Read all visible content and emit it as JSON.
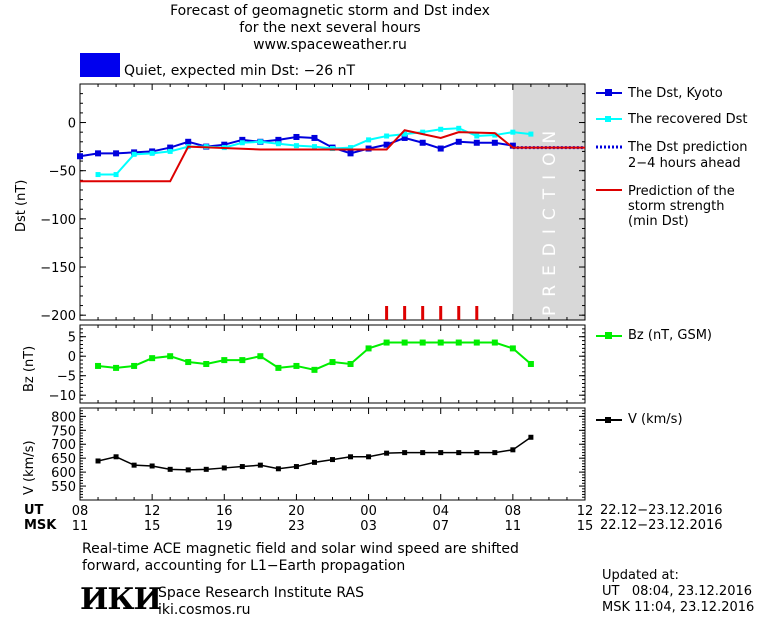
{
  "header": {
    "title_line1": "Forecast of geomagnetic storm and Dst index",
    "title_line2": "for the next several hours",
    "title_line3": "www.spaceweather.ru"
  },
  "status": {
    "text": "Quiet, expected min Dst: −26 nT",
    "color": "#0000ee"
  },
  "legend": {
    "dst_kyoto": "The Dst, Kyoto",
    "dst_recovered": "The recovered Dst",
    "dst_prediction_line1": "The Dst prediction",
    "dst_prediction_line2": "2−4 hours ahead",
    "storm_line1": "Prediction of the",
    "storm_line2": "storm strength",
    "storm_line3": "(min Dst)",
    "bz": "Bz (nT, GSM)",
    "v": "V (km/s)"
  },
  "prediction_label": "PREDICTION",
  "time_axis": {
    "ut_label": "UT",
    "msk_label": "MSK",
    "ut_ticks": [
      "08",
      "12",
      "16",
      "20",
      "00",
      "04",
      "08",
      "12"
    ],
    "msk_ticks": [
      "11",
      "15",
      "19",
      "23",
      "03",
      "07",
      "11",
      "15"
    ],
    "ut_date": "22.12−23.12.2016",
    "msk_date": "22.12−23.12.2016"
  },
  "footer": {
    "note_line1": "Real-time ACE magnetic field and solar wind speed are shifted",
    "note_line2": "forward, accounting for L1−Earth propagation",
    "logo": "ИКИ",
    "institute": "Space Research Institute RAS",
    "site": "iki.cosmos.ru",
    "updated_label": "Updated at:",
    "updated_ut": "UT   08:04, 23.12.2016",
    "updated_msk": "MSK 11:04, 23.12.2016"
  },
  "colors": {
    "kyoto": "#0000dd",
    "recovered": "#00ffff",
    "storm": "#dd0000",
    "bz": "#00ee00",
    "v": "#000000",
    "prediction_band": "#d8d8d8"
  },
  "chart_data": [
    {
      "type": "line",
      "ylabel": "Dst (nT)",
      "xlim": [
        8,
        36
      ],
      "ylim": [
        -205,
        40
      ],
      "yticks": [
        0,
        -50,
        -100,
        -150,
        -200
      ],
      "prediction_start_x": 32,
      "series": [
        {
          "name": "The Dst, Kyoto",
          "x": [
            8,
            9,
            10,
            11,
            12,
            13,
            14,
            15,
            16,
            17,
            18,
            19,
            20,
            21,
            22,
            23,
            24,
            25,
            26,
            27,
            28,
            29,
            30,
            31,
            32
          ],
          "y": [
            -35,
            -32,
            -32,
            -31,
            -30,
            -26,
            -20,
            -25,
            -23,
            -18,
            -20,
            -18,
            -15,
            -16,
            -26,
            -32,
            -27,
            -23,
            -16,
            -21,
            -27,
            -20,
            -21,
            -21,
            -24
          ]
        },
        {
          "name": "The recovered Dst",
          "x": [
            9,
            10,
            11,
            12,
            13,
            14,
            15,
            16,
            17,
            18,
            19,
            20,
            21,
            22,
            23,
            24,
            25,
            26,
            27,
            28,
            29,
            30,
            31,
            32,
            33
          ],
          "y": [
            -54,
            -54,
            -33,
            -32,
            -30,
            -25,
            -25,
            -26,
            -21,
            -20,
            -22,
            -24,
            -25,
            -27,
            -26,
            -18,
            -14,
            -12,
            -10,
            -7,
            -6,
            -14,
            -13,
            -10,
            -12
          ]
        },
        {
          "name": "The Dst prediction 2−4 hours ahead",
          "x": [
            32,
            34,
            36
          ],
          "y": [
            -26,
            -26,
            -26
          ]
        },
        {
          "name": "Prediction of the storm strength (min Dst)",
          "x": [
            8,
            13,
            14,
            18,
            21,
            25,
            26,
            28,
            29,
            31,
            32,
            36
          ],
          "y": [
            -61,
            -61,
            -25,
            -28,
            -28,
            -28,
            -8,
            -16,
            -10,
            -11,
            -26,
            -26
          ]
        }
      ],
      "markers_x": [
        25,
        26,
        27,
        28,
        29,
        30
      ]
    },
    {
      "type": "line",
      "ylabel": "Bz (nT)",
      "xlim": [
        8,
        36
      ],
      "ylim": [
        -12,
        8
      ],
      "yticks": [
        5,
        0,
        -5,
        -10
      ],
      "series": [
        {
          "name": "Bz (nT, GSM)",
          "x": [
            9,
            10,
            11,
            12,
            13,
            14,
            15,
            16,
            17,
            18,
            19,
            20,
            21,
            22,
            23,
            24,
            25,
            26,
            27,
            28,
            29,
            30,
            31,
            32,
            33
          ],
          "y": [
            -2.5,
            -3,
            -2.5,
            -0.5,
            0,
            -1.5,
            -2,
            -1,
            -1,
            0,
            -3,
            -2.5,
            -3.5,
            -1.5,
            -2,
            2,
            3.5,
            3.5,
            3.5,
            3.5,
            3.5,
            3.5,
            3.5,
            2,
            -2
          ]
        }
      ]
    },
    {
      "type": "line",
      "ylabel": "V (km/s)",
      "xlim": [
        8,
        36
      ],
      "ylim": [
        500,
        830
      ],
      "yticks": [
        800,
        750,
        700,
        650,
        600,
        550
      ],
      "series": [
        {
          "name": "V (km/s)",
          "x": [
            9,
            10,
            11,
            12,
            13,
            14,
            15,
            16,
            17,
            18,
            19,
            20,
            21,
            22,
            23,
            24,
            25,
            26,
            27,
            28,
            29,
            30,
            31,
            32,
            33
          ],
          "y": [
            640,
            655,
            625,
            622,
            610,
            608,
            610,
            615,
            620,
            625,
            612,
            620,
            635,
            645,
            655,
            655,
            668,
            670,
            670,
            670,
            670,
            670,
            670,
            680,
            725
          ]
        }
      ]
    }
  ]
}
